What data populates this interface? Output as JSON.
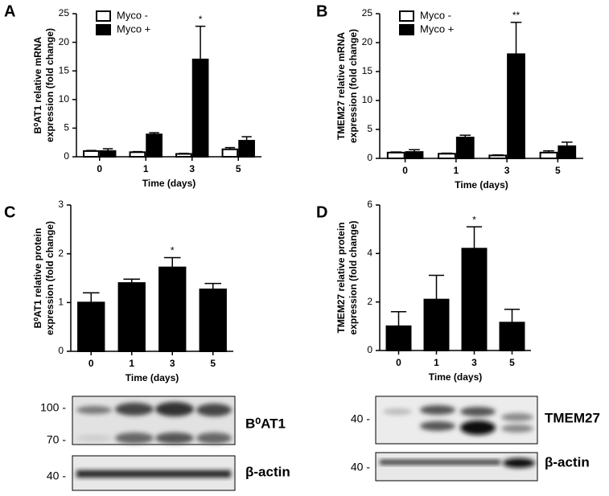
{
  "chart_data": [
    {
      "type": "bar",
      "panel": "A",
      "ylabel": [
        "B⁰AT1 relative mRNA",
        "expression (fold change)"
      ],
      "xlabel": "Time (days)",
      "categories": [
        "0",
        "1",
        "3",
        "5"
      ],
      "ylim": [
        0,
        25
      ],
      "yticks": [
        0,
        5,
        10,
        15,
        20,
        25
      ],
      "legend": "upper left",
      "series": [
        {
          "name": "Myco -",
          "color": "#ffffff",
          "values": [
            1.0,
            0.8,
            0.5,
            1.3
          ],
          "errors": [
            0.1,
            0.1,
            0.1,
            0.3
          ]
        },
        {
          "name": "Myco +",
          "color": "#000000",
          "values": [
            1.0,
            3.9,
            17.0,
            2.8
          ],
          "errors": [
            0.4,
            0.3,
            5.8,
            0.7
          ]
        }
      ],
      "annotations": [
        {
          "text": "*",
          "x": "3"
        }
      ]
    },
    {
      "type": "bar",
      "panel": "B",
      "ylabel": [
        "TMEM27 relative mRNA",
        "expression (fold change)"
      ],
      "xlabel": "Time (days)",
      "categories": [
        "0",
        "1",
        "3",
        "5"
      ],
      "ylim": [
        0,
        25
      ],
      "yticks": [
        0,
        5,
        10,
        15,
        20,
        25
      ],
      "legend": "upper left",
      "series": [
        {
          "name": "Myco -",
          "color": "#ffffff",
          "values": [
            1.0,
            0.8,
            0.5,
            1.0
          ],
          "errors": [
            0.1,
            0.1,
            0.1,
            0.3
          ]
        },
        {
          "name": "Myco +",
          "color": "#000000",
          "values": [
            1.1,
            3.6,
            18.0,
            2.1
          ],
          "errors": [
            0.4,
            0.4,
            5.5,
            0.7
          ]
        }
      ],
      "annotations": [
        {
          "text": "**",
          "x": "3"
        }
      ]
    },
    {
      "type": "bar",
      "panel": "C",
      "ylabel": [
        "B⁰AT1 relative protein",
        "expression (fold change)"
      ],
      "xlabel": "Time (days)",
      "categories": [
        "0",
        "1",
        "3",
        "5"
      ],
      "ylim": [
        0,
        3
      ],
      "yticks": [
        0,
        1,
        2,
        3
      ],
      "series": [
        {
          "color": "#000000",
          "values": [
            1.0,
            1.4,
            1.72,
            1.27
          ],
          "errors": [
            0.2,
            0.08,
            0.2,
            0.12
          ]
        }
      ],
      "annotations": [
        {
          "text": "*",
          "x": "3"
        }
      ]
    },
    {
      "type": "bar",
      "panel": "D",
      "ylabel": [
        "TMEM27 relative protein",
        "expression (fold change)"
      ],
      "xlabel": "Time (days)",
      "categories": [
        "0",
        "1",
        "3",
        "5"
      ],
      "ylim": [
        0,
        6
      ],
      "yticks": [
        0,
        2,
        4,
        6
      ],
      "series": [
        {
          "color": "#000000",
          "values": [
            1.0,
            2.1,
            4.2,
            1.15
          ],
          "errors": [
            0.6,
            1.0,
            0.9,
            0.55
          ]
        }
      ],
      "annotations": [
        {
          "text": "*",
          "x": "3"
        }
      ]
    }
  ],
  "blots": [
    {
      "markers": [
        "100 -",
        "70 -",
        "40 -"
      ],
      "labels": [
        "B⁰AT1",
        "β-actin"
      ]
    },
    {
      "markers": [
        "40 -",
        "40 -"
      ],
      "labels": [
        "TMEM27",
        "β-actin"
      ]
    }
  ]
}
